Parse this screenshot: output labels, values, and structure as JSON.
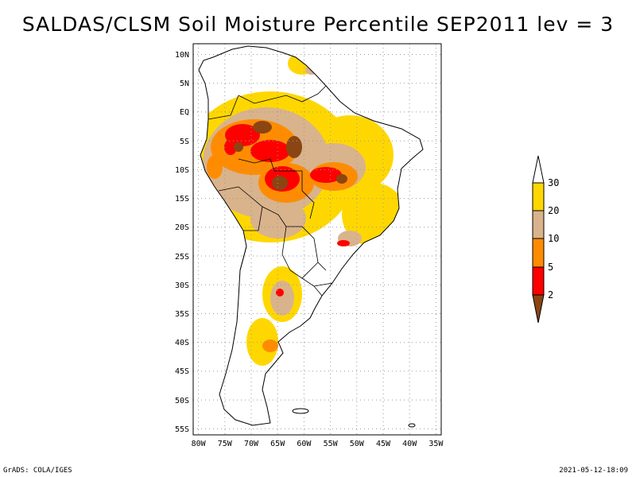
{
  "title": "SALDAS/CLSM Soil Moisture Percentile SEP2011 lev = 3",
  "footer": {
    "left": "GrADS: COLA/IGES",
    "right": "2021-05-12-18:09"
  },
  "axes": {
    "lat_labels": [
      "10N",
      "5N",
      "EQ",
      "5S",
      "10S",
      "15S",
      "20S",
      "25S",
      "30S",
      "35S",
      "40S",
      "45S",
      "50S",
      "55S"
    ],
    "lon_labels": [
      "80W",
      "75W",
      "70W",
      "65W",
      "60W",
      "55W",
      "50W",
      "45W",
      "40W",
      "35W"
    ]
  },
  "colorbar": {
    "labels": [
      "30",
      "20",
      "10",
      "5",
      "2"
    ],
    "colors": {
      "above30": "#ffffff",
      "c20_30": "#ffd700",
      "c10_20": "#d9b38c",
      "c5_10": "#ff8c00",
      "c2_5": "#ff0000",
      "below2": "#8b4513"
    }
  },
  "chart_data": {
    "type": "heatmap",
    "title": "SALDAS/CLSM Soil Moisture Percentile SEP2011 lev = 3",
    "variable": "Soil Moisture Percentile",
    "period": "SEP2011",
    "level": 3,
    "lon_range": [
      -80,
      -33
    ],
    "lat_range": [
      -56,
      12
    ],
    "levels": [
      2,
      5,
      10,
      20,
      30
    ],
    "colors": [
      "#8b4513",
      "#ff0000",
      "#ff8c00",
      "#d9b38c",
      "#ffd700",
      "#ffffff"
    ]
  }
}
